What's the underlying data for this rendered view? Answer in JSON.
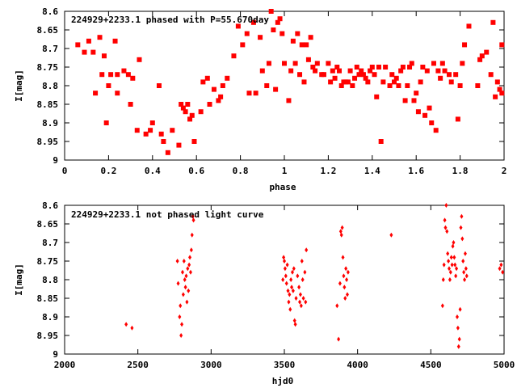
{
  "chart_data": [
    {
      "type": "scatter",
      "title": "224929+2233.1 phased with P=55.670day",
      "xlabel": "phase",
      "ylabel": "I[mag]",
      "xlim": [
        0,
        2
      ],
      "ylim": [
        8.6,
        9
      ],
      "y_inverted": true,
      "xticks": [
        "0",
        "0.2",
        "0.4",
        "0.6",
        "0.8",
        "1",
        "1.2",
        "1.4",
        "1.6",
        "1.8",
        "2"
      ],
      "yticks": [
        "8.6",
        "8.65",
        "8.7",
        "8.75",
        "8.8",
        "8.85",
        "8.9",
        "8.95",
        "9"
      ],
      "marker_color": "#ff0000",
      "series": [
        {
          "points": [
            [
              0.06,
              8.69
            ],
            [
              0.09,
              8.71
            ],
            [
              0.11,
              8.68
            ],
            [
              0.13,
              8.71
            ],
            [
              0.14,
              8.82
            ],
            [
              0.16,
              8.67
            ],
            [
              0.17,
              8.77
            ],
            [
              0.18,
              8.72
            ],
            [
              0.19,
              8.9
            ],
            [
              0.2,
              8.8
            ],
            [
              0.21,
              8.77
            ],
            [
              0.23,
              8.68
            ],
            [
              0.24,
              8.82
            ],
            [
              0.24,
              8.77
            ],
            [
              0.27,
              8.76
            ],
            [
              0.29,
              8.77
            ],
            [
              0.3,
              8.85
            ],
            [
              0.31,
              8.78
            ],
            [
              0.33,
              8.92
            ],
            [
              0.34,
              8.73
            ],
            [
              0.37,
              8.93
            ],
            [
              0.39,
              8.92
            ],
            [
              0.4,
              8.9
            ],
            [
              0.43,
              8.8
            ],
            [
              0.44,
              8.93
            ],
            [
              0.45,
              8.95
            ],
            [
              0.47,
              8.98
            ],
            [
              0.49,
              8.92
            ],
            [
              0.52,
              8.96
            ],
            [
              0.53,
              8.85
            ],
            [
              0.54,
              8.86
            ],
            [
              0.55,
              8.87
            ],
            [
              0.56,
              8.85
            ],
            [
              0.57,
              8.89
            ],
            [
              0.58,
              8.88
            ],
            [
              0.59,
              8.95
            ],
            [
              0.62,
              8.87
            ],
            [
              0.63,
              8.79
            ],
            [
              0.65,
              8.78
            ],
            [
              0.66,
              8.85
            ],
            [
              0.68,
              8.81
            ],
            [
              0.7,
              8.84
            ],
            [
              0.71,
              8.83
            ],
            [
              0.72,
              8.8
            ],
            [
              0.74,
              8.78
            ],
            [
              0.77,
              8.72
            ],
            [
              0.79,
              8.64
            ],
            [
              0.81,
              8.69
            ],
            [
              0.83,
              8.66
            ],
            [
              0.84,
              8.82
            ],
            [
              0.86,
              8.63
            ],
            [
              0.87,
              8.82
            ],
            [
              0.89,
              8.67
            ],
            [
              0.9,
              8.76
            ],
            [
              0.92,
              8.8
            ],
            [
              0.93,
              8.74
            ],
            [
              0.94,
              8.6
            ],
            [
              0.95,
              8.65
            ],
            [
              0.96,
              8.81
            ],
            [
              0.97,
              8.63
            ],
            [
              0.98,
              8.62
            ],
            [
              0.99,
              8.66
            ],
            [
              1.0,
              8.74
            ],
            [
              1.02,
              8.84
            ],
            [
              1.03,
              8.76
            ],
            [
              1.04,
              8.68
            ],
            [
              1.05,
              8.74
            ],
            [
              1.06,
              8.66
            ],
            [
              1.07,
              8.77
            ],
            [
              1.08,
              8.69
            ],
            [
              1.09,
              8.79
            ],
            [
              1.1,
              8.69
            ],
            [
              1.11,
              8.73
            ],
            [
              1.12,
              8.67
            ],
            [
              1.13,
              8.75
            ],
            [
              1.14,
              8.76
            ],
            [
              1.15,
              8.74
            ],
            [
              1.17,
              8.77
            ],
            [
              1.18,
              8.77
            ],
            [
              1.2,
              8.74
            ],
            [
              1.21,
              8.79
            ],
            [
              1.22,
              8.76
            ],
            [
              1.23,
              8.78
            ],
            [
              1.24,
              8.75
            ],
            [
              1.25,
              8.76
            ],
            [
              1.26,
              8.8
            ],
            [
              1.27,
              8.79
            ],
            [
              1.28,
              8.79
            ],
            [
              1.29,
              8.79
            ],
            [
              1.3,
              8.76
            ],
            [
              1.31,
              8.8
            ],
            [
              1.32,
              8.78
            ],
            [
              1.33,
              8.75
            ],
            [
              1.34,
              8.77
            ],
            [
              1.35,
              8.76
            ],
            [
              1.36,
              8.77
            ],
            [
              1.37,
              8.78
            ],
            [
              1.38,
              8.79
            ],
            [
              1.39,
              8.76
            ],
            [
              1.4,
              8.75
            ],
            [
              1.41,
              8.77
            ],
            [
              1.42,
              8.83
            ],
            [
              1.43,
              8.75
            ],
            [
              1.44,
              8.95
            ],
            [
              1.45,
              8.79
            ],
            [
              1.46,
              8.75
            ],
            [
              1.48,
              8.8
            ],
            [
              1.49,
              8.77
            ],
            [
              1.5,
              8.79
            ],
            [
              1.51,
              8.78
            ],
            [
              1.52,
              8.8
            ],
            [
              1.53,
              8.76
            ],
            [
              1.54,
              8.75
            ],
            [
              1.55,
              8.84
            ],
            [
              1.56,
              8.8
            ],
            [
              1.57,
              8.75
            ],
            [
              1.58,
              8.74
            ],
            [
              1.59,
              8.84
            ],
            [
              1.6,
              8.82
            ],
            [
              1.61,
              8.87
            ],
            [
              1.62,
              8.79
            ],
            [
              1.63,
              8.75
            ],
            [
              1.64,
              8.88
            ],
            [
              1.65,
              8.76
            ],
            [
              1.66,
              8.86
            ],
            [
              1.67,
              8.9
            ],
            [
              1.68,
              8.74
            ],
            [
              1.69,
              8.92
            ],
            [
              1.7,
              8.76
            ],
            [
              1.71,
              8.78
            ],
            [
              1.72,
              8.74
            ],
            [
              1.73,
              8.76
            ],
            [
              1.75,
              8.77
            ],
            [
              1.76,
              8.79
            ],
            [
              1.78,
              8.77
            ],
            [
              1.79,
              8.89
            ],
            [
              1.8,
              8.8
            ],
            [
              1.81,
              8.74
            ],
            [
              1.82,
              8.69
            ],
            [
              1.84,
              8.64
            ],
            [
              1.88,
              8.8
            ],
            [
              1.89,
              8.73
            ],
            [
              1.9,
              8.72
            ],
            [
              1.92,
              8.71
            ],
            [
              1.94,
              8.77
            ],
            [
              1.95,
              8.63
            ],
            [
              1.96,
              8.83
            ],
            [
              1.97,
              8.79
            ],
            [
              1.98,
              8.81
            ],
            [
              1.99,
              8.82
            ],
            [
              1.99,
              8.69
            ]
          ]
        }
      ]
    },
    {
      "type": "scatter",
      "title": "224929+2233.1 not phased light curve",
      "xlabel": "hjd0",
      "ylabel": "I[mag]",
      "xlim": [
        2000,
        5000
      ],
      "ylim": [
        8.6,
        9
      ],
      "y_inverted": true,
      "xticks": [
        "2000",
        "2500",
        "3000",
        "3500",
        "4000",
        "4500",
        "5000"
      ],
      "yticks": [
        "8.6",
        "8.65",
        "8.7",
        "8.75",
        "8.8",
        "8.85",
        "8.9",
        "8.95",
        "9"
      ],
      "marker_color": "#ff0000",
      "series": [
        {
          "points": [
            [
              2420,
              8.92
            ],
            [
              2460,
              8.93
            ],
            [
              2770,
              8.75
            ],
            [
              2775,
              8.81
            ],
            [
              2785,
              8.9
            ],
            [
              2790,
              8.87
            ],
            [
              2795,
              8.95
            ],
            [
              2800,
              8.92
            ],
            [
              2805,
              8.78
            ],
            [
              2810,
              8.84
            ],
            [
              2815,
              8.75
            ],
            [
              2820,
              8.8
            ],
            [
              2825,
              8.82
            ],
            [
              2830,
              8.79
            ],
            [
              2835,
              8.86
            ],
            [
              2840,
              8.77
            ],
            [
              2845,
              8.83
            ],
            [
              2850,
              8.76
            ],
            [
              2855,
              8.74
            ],
            [
              2860,
              8.78
            ],
            [
              2865,
              8.72
            ],
            [
              2870,
              8.68
            ],
            [
              2875,
              8.63
            ],
            [
              2880,
              8.64
            ],
            [
              3490,
              8.8
            ],
            [
              3495,
              8.74
            ],
            [
              3500,
              8.75
            ],
            [
              3505,
              8.77
            ],
            [
              3510,
              8.79
            ],
            [
              3515,
              8.81
            ],
            [
              3520,
              8.76
            ],
            [
              3525,
              8.83
            ],
            [
              3530,
              8.86
            ],
            [
              3535,
              8.84
            ],
            [
              3540,
              8.88
            ],
            [
              3545,
              8.8
            ],
            [
              3550,
              8.82
            ],
            [
              3555,
              8.78
            ],
            [
              3560,
              8.83
            ],
            [
              3565,
              8.77
            ],
            [
              3570,
              8.91
            ],
            [
              3575,
              8.92
            ],
            [
              3580,
              8.85
            ],
            [
              3590,
              8.79
            ],
            [
              3600,
              8.82
            ],
            [
              3605,
              8.86
            ],
            [
              3610,
              8.84
            ],
            [
              3615,
              8.87
            ],
            [
              3620,
              8.75
            ],
            [
              3625,
              8.8
            ],
            [
              3630,
              8.85
            ],
            [
              3640,
              8.78
            ],
            [
              3645,
              8.86
            ],
            [
              3650,
              8.72
            ],
            [
              3860,
              8.87
            ],
            [
              3870,
              8.96
            ],
            [
              3880,
              8.81
            ],
            [
              3885,
              8.67
            ],
            [
              3890,
              8.68
            ],
            [
              3895,
              8.66
            ],
            [
              3900,
              8.74
            ],
            [
              3905,
              8.79
            ],
            [
              3910,
              8.82
            ],
            [
              3915,
              8.85
            ],
            [
              3920,
              8.77
            ],
            [
              3925,
              8.8
            ],
            [
              3930,
              8.84
            ],
            [
              3935,
              8.78
            ],
            [
              4230,
              8.68
            ],
            [
              4580,
              8.87
            ],
            [
              4585,
              8.8
            ],
            [
              4590,
              8.76
            ],
            [
              4595,
              8.64
            ],
            [
              4600,
              8.66
            ],
            [
              4605,
              8.6
            ],
            [
              4610,
              8.67
            ],
            [
              4615,
              8.73
            ],
            [
              4620,
              8.75
            ],
            [
              4625,
              8.77
            ],
            [
              4630,
              8.8
            ],
            [
              4635,
              8.78
            ],
            [
              4640,
              8.74
            ],
            [
              4645,
              8.76
            ],
            [
              4650,
              8.71
            ],
            [
              4655,
              8.7
            ],
            [
              4660,
              8.74
            ],
            [
              4665,
              8.76
            ],
            [
              4670,
              8.79
            ],
            [
              4675,
              8.77
            ],
            [
              4680,
              8.9
            ],
            [
              4685,
              8.93
            ],
            [
              4690,
              8.98
            ],
            [
              4695,
              8.96
            ],
            [
              4700,
              8.88
            ],
            [
              4705,
              8.66
            ],
            [
              4710,
              8.63
            ],
            [
              4715,
              8.69
            ],
            [
              4720,
              8.75
            ],
            [
              4725,
              8.78
            ],
            [
              4730,
              8.8
            ],
            [
              4735,
              8.73
            ],
            [
              4740,
              8.77
            ],
            [
              4745,
              8.79
            ],
            [
              4970,
              8.77
            ],
            [
              4980,
              8.76
            ],
            [
              4990,
              8.78
            ]
          ]
        }
      ]
    }
  ]
}
